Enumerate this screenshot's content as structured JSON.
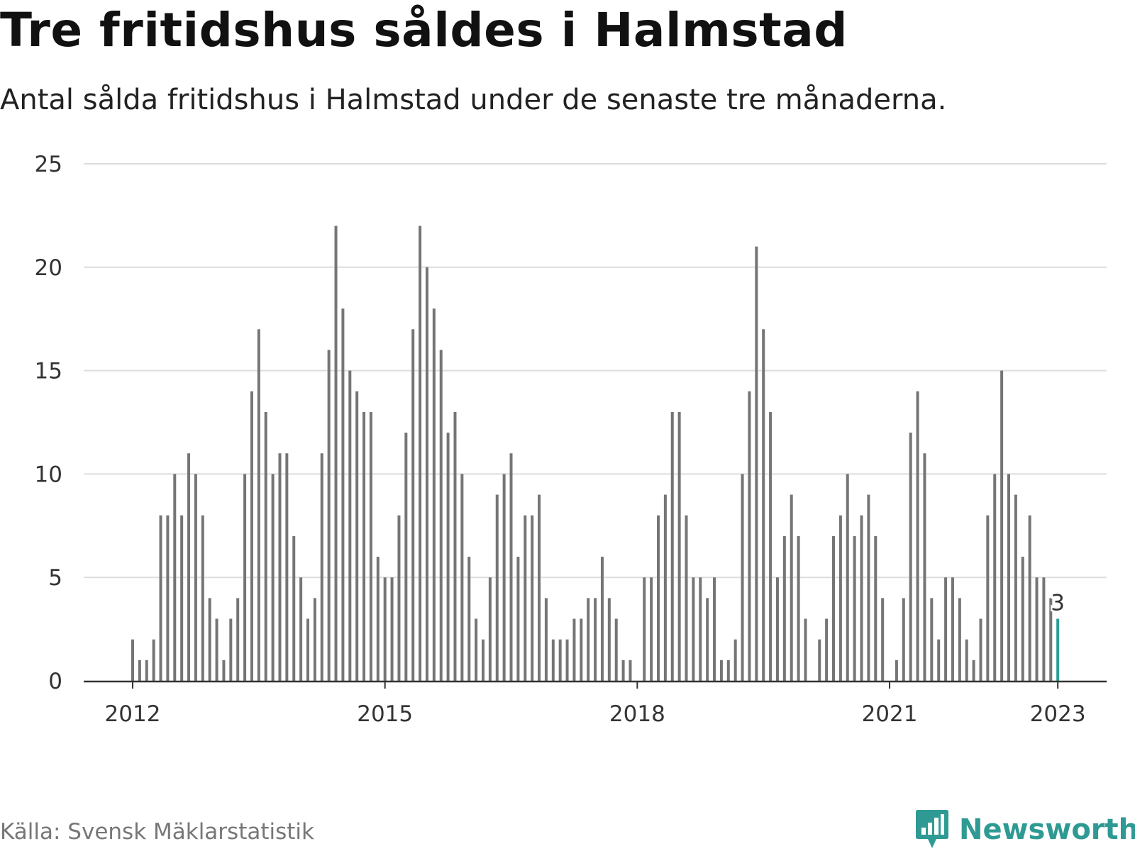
{
  "header": {
    "title": "Tre fritidshus såldes i Halmstad",
    "subtitle": "Antal sålda fritidshus i Halmstad under de senaste tre månaderna."
  },
  "footer": {
    "source": "Källa: Svensk Mäklarstatistik",
    "brand": "Newsworthy",
    "brand_icon": "bar-chart-badge-icon"
  },
  "colors": {
    "bar": "#757575",
    "highlight": "#2a9d96",
    "grid": "#dddddd",
    "axis": "#333333",
    "brand": "#2f9a93"
  },
  "chart_data": {
    "type": "bar",
    "title": "Tre fritidshus såldes i Halmstad",
    "subtitle": "Antal sålda fritidshus i Halmstad under de senaste tre månaderna.",
    "xlabel": "",
    "ylabel": "",
    "ylim": [
      0,
      25
    ],
    "yticks": [
      "0",
      "5",
      "10",
      "15",
      "20",
      "25"
    ],
    "xticks": [
      {
        "label": "2012",
        "index": 0
      },
      {
        "label": "2015",
        "index": 36
      },
      {
        "label": "2018",
        "index": 72
      },
      {
        "label": "2021",
        "index": 108
      },
      {
        "label": "2023",
        "index": 132
      }
    ],
    "grid": true,
    "start": "2012-01",
    "interval": "month",
    "values": [
      2,
      1,
      1,
      2,
      8,
      8,
      10,
      8,
      11,
      10,
      8,
      4,
      3,
      1,
      3,
      4,
      10,
      14,
      17,
      13,
      10,
      11,
      11,
      7,
      5,
      3,
      4,
      11,
      16,
      22,
      18,
      15,
      14,
      13,
      13,
      6,
      5,
      5,
      8,
      12,
      17,
      22,
      20,
      18,
      16,
      12,
      13,
      10,
      6,
      3,
      2,
      5,
      9,
      10,
      11,
      6,
      8,
      8,
      9,
      4,
      2,
      2,
      2,
      3,
      3,
      4,
      4,
      6,
      4,
      3,
      1,
      1,
      0,
      5,
      5,
      8,
      9,
      13,
      13,
      8,
      5,
      5,
      4,
      5,
      1,
      1,
      2,
      10,
      14,
      21,
      17,
      13,
      5,
      7,
      9,
      7,
      3,
      0,
      2,
      3,
      7,
      8,
      10,
      7,
      8,
      9,
      7,
      4,
      0,
      1,
      4,
      12,
      14,
      11,
      4,
      2,
      5,
      5,
      4,
      2,
      1,
      3,
      8,
      10,
      15,
      10,
      9,
      6,
      8,
      5,
      5,
      4,
      3
    ],
    "highlight_index": 132,
    "highlight_label": "3"
  }
}
